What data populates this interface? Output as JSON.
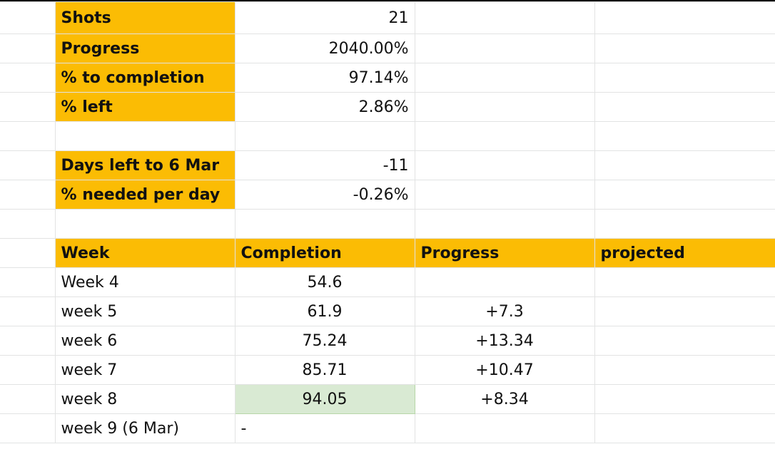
{
  "summary": {
    "shots_label": "Shots",
    "shots_value": "21",
    "progress_label": "Progress",
    "progress_value": "2040.00%",
    "to_completion_label": "% to completion",
    "to_completion_value": "97.14%",
    "left_label": "% left",
    "left_value": "2.86%",
    "days_left_label": "Days left to 6 Mar",
    "days_left_value": "-11",
    "needed_per_day_label": "% needed per day",
    "needed_per_day_value": "-0.26%"
  },
  "table": {
    "headers": [
      "Week",
      "Completion",
      "Progress",
      "projected"
    ],
    "rows": [
      {
        "week": "Week 4",
        "completion": "54.6",
        "progress": "",
        "projected": ""
      },
      {
        "week": "week 5",
        "completion": "61.9",
        "progress": "+7.3",
        "projected": ""
      },
      {
        "week": "week 6",
        "completion": "75.24",
        "progress": "+13.34",
        "projected": ""
      },
      {
        "week": "week 7",
        "completion": "85.71",
        "progress": "+10.47",
        "projected": ""
      },
      {
        "week": "week 8",
        "completion": "94.05",
        "progress": "+8.34",
        "projected": ""
      },
      {
        "week": "week 9 (6 Mar)",
        "completion": "-",
        "progress": "",
        "projected": ""
      }
    ]
  },
  "colors": {
    "header_fill": "#fbbc04",
    "highlight_fill": "#d9ead3",
    "grid": "#e2e3e3"
  }
}
